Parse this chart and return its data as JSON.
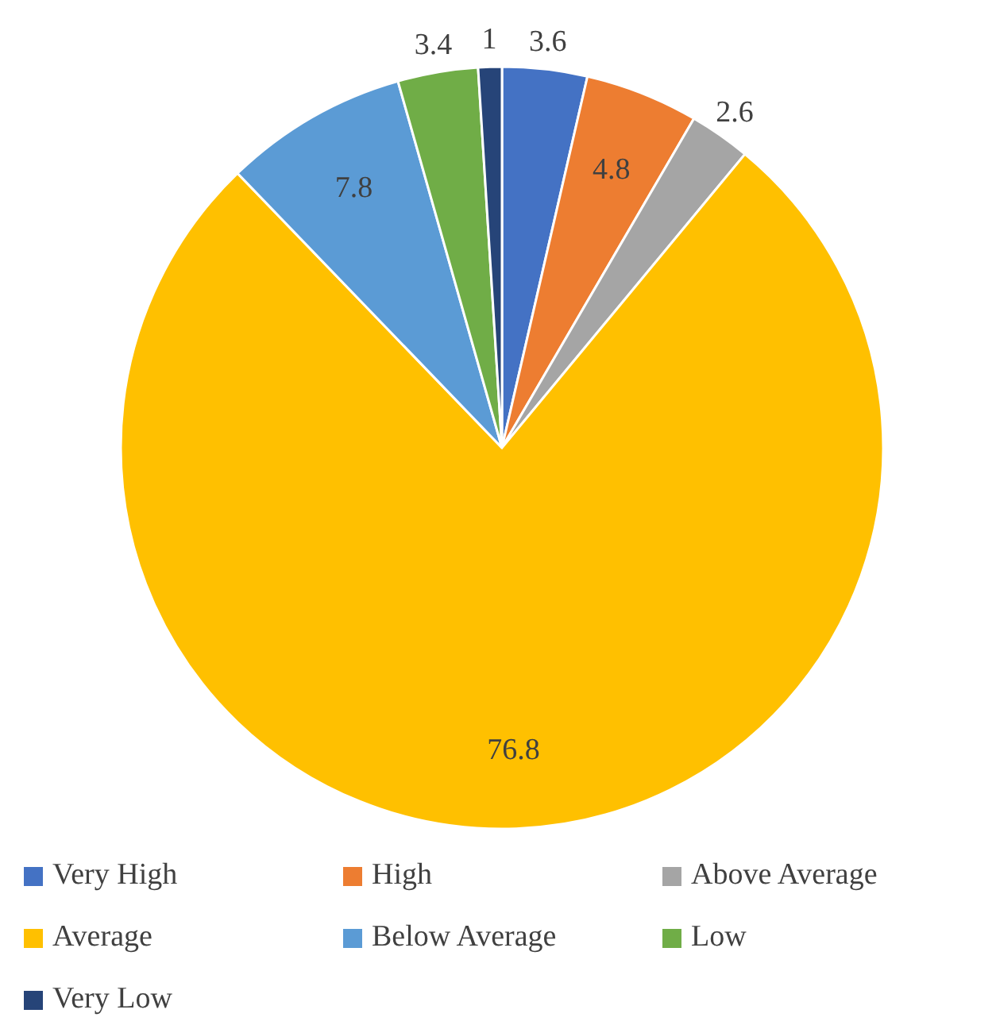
{
  "chart_data": {
    "type": "pie",
    "categories": [
      "Very High",
      "High",
      "Above Average",
      "Average",
      "Below Average",
      "Low",
      "Very Low"
    ],
    "values": [
      3.6,
      4.8,
      2.6,
      76.8,
      7.8,
      3.4,
      1
    ],
    "colors": [
      "#4472c4",
      "#ed7d31",
      "#a5a5a5",
      "#ffc000",
      "#5b9bd5",
      "#70ad47",
      "#264478"
    ],
    "data_labels": true,
    "legend": "bottom"
  }
}
